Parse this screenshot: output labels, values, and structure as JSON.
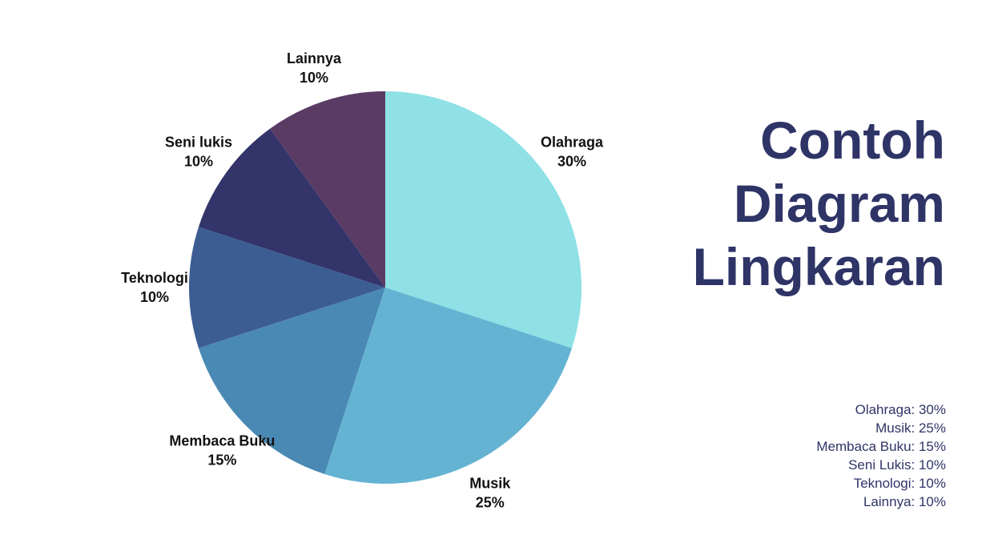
{
  "title_lines": [
    "Contoh",
    "Diagram",
    "Lingkaran"
  ],
  "chart_data": {
    "type": "pie",
    "start_angle_deg": 0,
    "direction": "clockwise",
    "slices": [
      {
        "label": "Olahraga",
        "value": 30,
        "value_label": "30%",
        "color": "#8fe1e6"
      },
      {
        "label": "Musik",
        "value": 25,
        "value_label": "25%",
        "color": "#64b3d2"
      },
      {
        "label": "Membaca Buku",
        "value": 15,
        "value_label": "15%",
        "color": "#4a89b4"
      },
      {
        "label": "Teknologi",
        "value": 10,
        "value_label": "10%",
        "color": "#3b5d92"
      },
      {
        "label": "Seni lukis",
        "value": 10,
        "value_label": "10%",
        "color": "#32346a"
      },
      {
        "label": "Lainnya",
        "value": 10,
        "value_label": "10%",
        "color": "#5a3b64"
      }
    ]
  },
  "legend": [
    "Olahraga: 30%",
    "Musik: 25%",
    "Membaca Buku: 15%",
    "Seni Lukis: 10%",
    "Teknologi: 10%",
    "Lainnya: 10%"
  ]
}
